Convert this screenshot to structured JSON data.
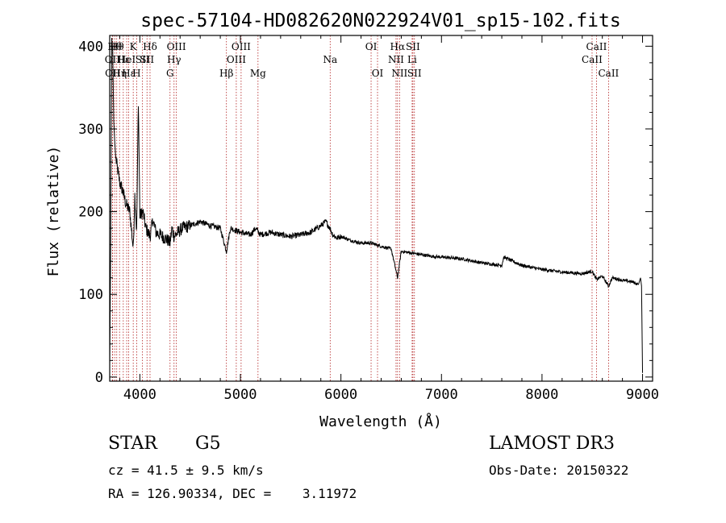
{
  "chart_data": {
    "type": "line",
    "title": "spec-57104-HD082620N022924V01_sp15-102.fits",
    "xlabel": "Wavelength (Å)",
    "ylabel": "Flux (relative)",
    "xlim": [
      3700,
      9100
    ],
    "ylim": [
      -5,
      413
    ],
    "xticks": [
      4000,
      5000,
      6000,
      7000,
      8000,
      9000
    ],
    "yticks": [
      0,
      100,
      200,
      300,
      400
    ],
    "series": [
      {
        "name": "flux",
        "x": [
          3700,
          3710,
          3720,
          3730,
          3740,
          3750,
          3760,
          3780,
          3800,
          3830,
          3860,
          3900,
          3934,
          3950,
          3968,
          3985,
          4000,
          4030,
          4060,
          4101,
          4130,
          4160,
          4200,
          4250,
          4280,
          4300,
          4320,
          4340,
          4380,
          4420,
          4500,
          4600,
          4700,
          4800,
          4861,
          4900,
          5000,
          5100,
          5150,
          5200,
          5300,
          5400,
          5500,
          5600,
          5700,
          5800,
          5850,
          5890,
          5920,
          5960,
          6000,
          6100,
          6200,
          6300,
          6400,
          6500,
          6563,
          6600,
          6700,
          6800,
          6900,
          7000,
          7200,
          7400,
          7600,
          7620,
          7800,
          8000,
          8200,
          8400,
          8498,
          8542,
          8600,
          8662,
          8700,
          8800,
          8900,
          8960,
          8980,
          8990,
          9000
        ],
        "y": [
          15,
          160,
          410,
          395,
          310,
          285,
          265,
          250,
          235,
          225,
          210,
          200,
          155,
          220,
          175,
          335,
          195,
          200,
          180,
          170,
          190,
          175,
          172,
          168,
          165,
          162,
          180,
          170,
          175,
          180,
          183,
          188,
          183,
          180,
          152,
          180,
          175,
          172,
          180,
          172,
          175,
          172,
          170,
          172,
          175,
          183,
          188,
          180,
          172,
          168,
          170,
          165,
          162,
          162,
          158,
          155,
          120,
          152,
          150,
          148,
          146,
          145,
          143,
          138,
          135,
          145,
          135,
          130,
          127,
          125,
          128,
          118,
          122,
          110,
          120,
          117,
          115,
          112,
          120,
          110,
          5
        ]
      }
    ],
    "lines": [
      {
        "x": 3727,
        "label": "OII",
        "row": 1
      },
      {
        "x": 3730,
        "label": "OII",
        "row": 2
      },
      {
        "x": 3750,
        "label": "Hθ",
        "row": 0
      },
      {
        "x": 3770,
        "label": "Hθ",
        "row": 0
      },
      {
        "x": 3798,
        "label": "Hη",
        "row": 2
      },
      {
        "x": 3835,
        "label": "Hε",
        "row": 1
      },
      {
        "x": 3869,
        "label": "HeI",
        "row": 1
      },
      {
        "x": 3889,
        "label": "Hε",
        "row": 2
      },
      {
        "x": 3934,
        "label": "K",
        "row": 0
      },
      {
        "x": 3968,
        "label": "H",
        "row": 2
      },
      {
        "x": 4026,
        "label": "SII",
        "row": 1
      },
      {
        "x": 4071,
        "label": "SII",
        "row": 1
      },
      {
        "x": 4101,
        "label": "Hδ",
        "row": 0
      },
      {
        "x": 4300,
        "label": "G",
        "row": 2
      },
      {
        "x": 4340,
        "label": "Hγ",
        "row": 1
      },
      {
        "x": 4363,
        "label": "OIII",
        "row": 0
      },
      {
        "x": 4861,
        "label": "Hβ",
        "row": 2
      },
      {
        "x": 4959,
        "label": "OIII",
        "row": 1
      },
      {
        "x": 5007,
        "label": "OIII",
        "row": 0
      },
      {
        "x": 5175,
        "label": "Mg",
        "row": 2
      },
      {
        "x": 5893,
        "label": "Na",
        "row": 1
      },
      {
        "x": 6300,
        "label": "OI",
        "row": 0
      },
      {
        "x": 6364,
        "label": "OI",
        "row": 2
      },
      {
        "x": 6548,
        "label": "NII",
        "row": 1
      },
      {
        "x": 6563,
        "label": "Hα",
        "row": 0
      },
      {
        "x": 6583,
        "label": "NII",
        "row": 2
      },
      {
        "x": 6708,
        "label": "Li",
        "row": 1
      },
      {
        "x": 6716,
        "label": "SII",
        "row": 0
      },
      {
        "x": 6731,
        "label": "SII",
        "row": 2
      },
      {
        "x": 8498,
        "label": "CaII",
        "row": 1
      },
      {
        "x": 8542,
        "label": "CaII",
        "row": 0
      },
      {
        "x": 8662,
        "label": "CaII",
        "row": 2
      }
    ]
  },
  "info": {
    "object_class": "STAR",
    "subclass": "G5",
    "survey": "LAMOST DR3",
    "redshift": "cz = 41.5 ± 9.5 km/s",
    "obs_date": "Obs-Date: 20150322",
    "coords": "RA = 126.90334, DEC =    3.11972"
  },
  "colors": {
    "line_marker": "#b22222",
    "spectrum": "#000000",
    "axes": "#000000"
  }
}
